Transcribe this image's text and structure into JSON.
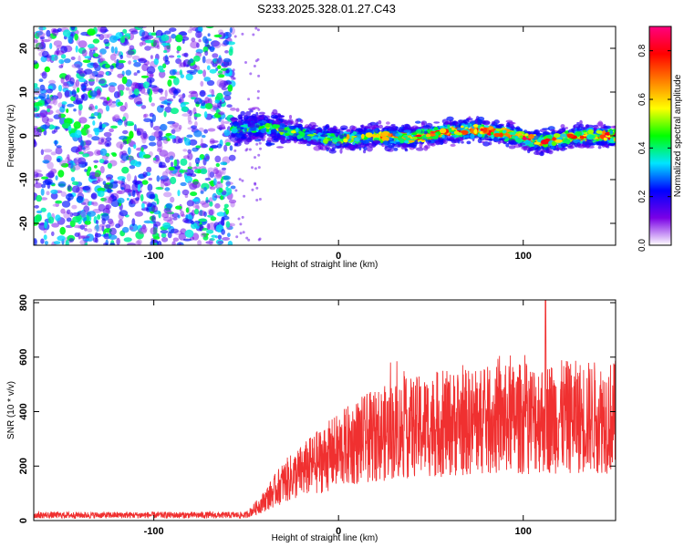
{
  "title": "S233.2025.328.01.27.C43",
  "chart_data": [
    {
      "type": "heatmap",
      "xlabel": "Height of straight line (km)",
      "ylabel": "Frequency (Hz)",
      "xlim": [
        -165,
        150
      ],
      "ylim": [
        -25,
        25
      ],
      "xticks": [
        -100,
        0,
        100
      ],
      "yticks": [
        -20,
        -10,
        0,
        10,
        20
      ],
      "colorbar": {
        "label": "Normalized spectral amplitude",
        "range": [
          0,
          0.9
        ],
        "ticks": [
          0.0,
          0.2,
          0.4,
          0.6,
          0.8
        ],
        "colors": [
          "#ffffff",
          "#7a00e6",
          "#0000ff",
          "#00e5ff",
          "#00ff00",
          "#ffff00",
          "#ff8000",
          "#ff0000",
          "#ff0080"
        ]
      },
      "signal_band": {
        "x_start": -57,
        "center_hz": [
          {
            "x": -57,
            "hz": 1.5
          },
          {
            "x": -40,
            "hz": 2.0
          },
          {
            "x": -20,
            "hz": 0.5
          },
          {
            "x": 0,
            "hz": -1.0
          },
          {
            "x": 20,
            "hz": 0.0
          },
          {
            "x": 40,
            "hz": -0.5
          },
          {
            "x": 60,
            "hz": 1.0
          },
          {
            "x": 75,
            "hz": 1.5
          },
          {
            "x": 90,
            "hz": 0.5
          },
          {
            "x": 110,
            "hz": -1.5
          },
          {
            "x": 130,
            "hz": 0.0
          },
          {
            "x": 150,
            "hz": 0.0
          }
        ],
        "peak_amplitude": 0.9
      },
      "background_amplitude": 0.45
    },
    {
      "type": "line",
      "xlabel": "Height of straight line (km)",
      "ylabel": "SNR (10 * v/v)",
      "xlim": [
        -165,
        150
      ],
      "ylim": [
        0,
        810
      ],
      "xticks": [
        -100,
        0,
        100
      ],
      "yticks": [
        0,
        200,
        400,
        600,
        800
      ],
      "series": [
        {
          "color": "#f03030",
          "trend": [
            {
              "x": -165,
              "y": 20
            },
            {
              "x": -50,
              "y": 20
            },
            {
              "x": -42,
              "y": 60
            },
            {
              "x": -30,
              "y": 140
            },
            {
              "x": -10,
              "y": 220
            },
            {
              "x": 10,
              "y": 290
            },
            {
              "x": 30,
              "y": 330
            },
            {
              "x": 50,
              "y": 350
            },
            {
              "x": 70,
              "y": 360
            },
            {
              "x": 90,
              "y": 370
            },
            {
              "x": 110,
              "y": 380
            },
            {
              "x": 130,
              "y": 380
            },
            {
              "x": 150,
              "y": 380
            }
          ],
          "peak": {
            "x": 112,
            "y": 810
          }
        }
      ]
    }
  ]
}
